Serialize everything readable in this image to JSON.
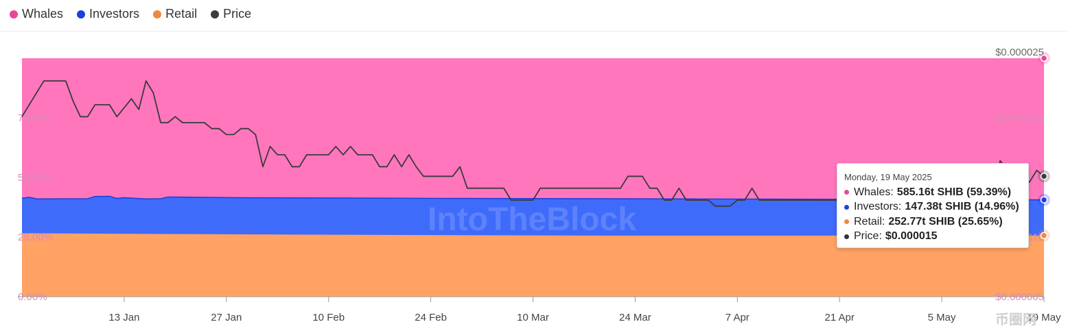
{
  "legend": [
    {
      "name": "Whales",
      "color": "#e8479a"
    },
    {
      "name": "Investors",
      "color": "#1c3fe0"
    },
    {
      "name": "Retail",
      "color": "#f0883e"
    },
    {
      "name": "Price",
      "color": "#3c3c3c"
    }
  ],
  "colors": {
    "whales_fill": "#ff76bd",
    "investors_fill": "#3f6bfb",
    "retail_fill": "#ffa263",
    "investors_line": "#1e3fd6",
    "price_line": "#3a3a3a"
  },
  "watermark_text": "IntoTheBlock",
  "corner_mark_text": "币圈网",
  "chart_data": {
    "type": "area",
    "stacked_percent": true,
    "x_range": [
      "2024-12-30",
      "2025-05-19"
    ],
    "x_ticks": [
      "13 Jan",
      "27 Jan",
      "10 Feb",
      "24 Feb",
      "10 Mar",
      "24 Mar",
      "7 Apr",
      "21 Apr",
      "5 May",
      "19 May"
    ],
    "y_left_ticks": [
      "0.00%",
      "25.00%",
      "50.00%",
      "75.00%"
    ],
    "y_left_range": [
      0,
      100
    ],
    "y_right_ticks": [
      "$0.000005",
      "$0.000010",
      "$0.000015",
      "$0.000020",
      "$0.000025"
    ],
    "y_right_range": [
      5e-06,
      2.5e-05
    ],
    "retail_pct": [
      [
        0,
        26.6
      ],
      [
        20,
        26.3
      ],
      [
        40,
        26.0
      ],
      [
        60,
        25.8
      ],
      [
        80,
        25.6
      ],
      [
        100,
        25.6
      ],
      [
        140,
        25.65
      ]
    ],
    "investors_top_pct": [
      [
        0,
        41.3
      ],
      [
        1,
        41.7
      ],
      [
        2,
        41.0
      ],
      [
        9,
        41.1
      ],
      [
        10,
        42.0
      ],
      [
        12,
        42.1
      ],
      [
        13,
        41.2
      ],
      [
        14,
        41.5
      ],
      [
        17,
        41.0
      ],
      [
        19,
        41.1
      ],
      [
        20,
        41.8
      ],
      [
        30,
        41.5
      ],
      [
        60,
        41.2
      ],
      [
        90,
        41.0
      ],
      [
        140,
        40.6
      ]
    ],
    "price": [
      [
        0,
        2.01e-05
      ],
      [
        3,
        2.31e-05
      ],
      [
        6,
        2.31e-05
      ],
      [
        7,
        2.14e-05
      ],
      [
        8,
        2.01e-05
      ],
      [
        9,
        2.01e-05
      ],
      [
        10,
        2.11e-05
      ],
      [
        12,
        2.11e-05
      ],
      [
        13,
        2.01e-05
      ],
      [
        15,
        2.16e-05
      ],
      [
        16,
        2.07e-05
      ],
      [
        17,
        2.31e-05
      ],
      [
        18,
        2.21e-05
      ],
      [
        19,
        1.96e-05
      ],
      [
        20,
        1.96e-05
      ],
      [
        21,
        2.01e-05
      ],
      [
        22,
        1.96e-05
      ],
      [
        25,
        1.96e-05
      ],
      [
        26,
        1.91e-05
      ],
      [
        27,
        1.91e-05
      ],
      [
        28,
        1.86e-05
      ],
      [
        29,
        1.86e-05
      ],
      [
        30,
        1.91e-05
      ],
      [
        31,
        1.91e-05
      ],
      [
        32,
        1.86e-05
      ],
      [
        33,
        1.59e-05
      ],
      [
        34,
        1.76e-05
      ],
      [
        35,
        1.69e-05
      ],
      [
        36,
        1.69e-05
      ],
      [
        37,
        1.59e-05
      ],
      [
        38,
        1.59e-05
      ],
      [
        39,
        1.69e-05
      ],
      [
        42,
        1.69e-05
      ],
      [
        43,
        1.76e-05
      ],
      [
        44,
        1.69e-05
      ],
      [
        45,
        1.76e-05
      ],
      [
        46,
        1.69e-05
      ],
      [
        48,
        1.69e-05
      ],
      [
        49,
        1.59e-05
      ],
      [
        50,
        1.59e-05
      ],
      [
        51,
        1.69e-05
      ],
      [
        52,
        1.59e-05
      ],
      [
        53,
        1.69e-05
      ],
      [
        54,
        1.59e-05
      ],
      [
        55,
        1.51e-05
      ],
      [
        59,
        1.51e-05
      ],
      [
        60,
        1.59e-05
      ],
      [
        61,
        1.41e-05
      ],
      [
        62,
        1.41e-05
      ],
      [
        66,
        1.41e-05
      ],
      [
        67,
        1.31e-05
      ],
      [
        70,
        1.31e-05
      ],
      [
        71,
        1.41e-05
      ],
      [
        79,
        1.41e-05
      ],
      [
        80,
        1.41e-05
      ],
      [
        82,
        1.41e-05
      ],
      [
        83,
        1.51e-05
      ],
      [
        85,
        1.51e-05
      ],
      [
        86,
        1.41e-05
      ],
      [
        87,
        1.41e-05
      ],
      [
        88,
        1.31e-05
      ],
      [
        89,
        1.31e-05
      ],
      [
        90,
        1.41e-05
      ],
      [
        91,
        1.31e-05
      ],
      [
        94,
        1.31e-05
      ],
      [
        95,
        1.26e-05
      ],
      [
        97,
        1.26e-05
      ],
      [
        98,
        1.31e-05
      ],
      [
        99,
        1.31e-05
      ],
      [
        100,
        1.41e-05
      ],
      [
        101,
        1.31e-05
      ],
      [
        133,
        1.31e-05
      ],
      [
        134,
        1.64e-05
      ],
      [
        135,
        1.56e-05
      ],
      [
        136,
        1.41e-05
      ],
      [
        137,
        1.51e-05
      ],
      [
        138,
        1.46e-05
      ],
      [
        139,
        1.56e-05
      ],
      [
        140,
        1.51e-05
      ]
    ]
  },
  "tooltip": {
    "date": "Monday, 19 May 2025",
    "rows": [
      {
        "label": "Whales:",
        "value": "585.16t SHIB (59.39%)",
        "color": "#e8479a"
      },
      {
        "label": "Investors:",
        "value": "147.38t SHIB (14.96%)",
        "color": "#1c3fe0"
      },
      {
        "label": "Retail:",
        "value": "252.77t SHIB (25.65%)",
        "color": "#f0883e"
      },
      {
        "label": "Price:",
        "value": "$0.000015",
        "color": "#333333"
      }
    ]
  }
}
